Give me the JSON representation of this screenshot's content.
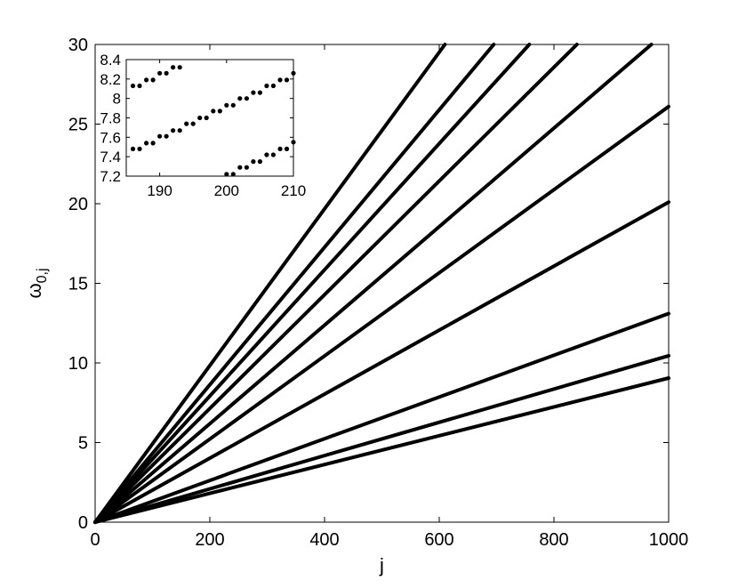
{
  "chart_data": {
    "type": "line",
    "xlabel": "j",
    "ylabel": "ω",
    "ylabel_subscript": "0,j",
    "xlim": [
      0,
      1000
    ],
    "ylim": [
      0,
      30
    ],
    "xticks": [
      "0",
      "200",
      "400",
      "600",
      "800",
      "1000"
    ],
    "yticks": [
      "0",
      "5",
      "10",
      "15",
      "20",
      "25",
      "30"
    ],
    "grid": false,
    "line_color": "#000000",
    "series": [
      {
        "points": [
          [
            0,
            0
          ],
          [
            610,
            30
          ]
        ]
      },
      {
        "points": [
          [
            0,
            0
          ],
          [
            695,
            30
          ]
        ]
      },
      {
        "points": [
          [
            0,
            0
          ],
          [
            757,
            30
          ]
        ]
      },
      {
        "points": [
          [
            0,
            0
          ],
          [
            840,
            30
          ]
        ]
      },
      {
        "points": [
          [
            0,
            0
          ],
          [
            970,
            30
          ]
        ]
      },
      {
        "points": [
          [
            0,
            0
          ],
          [
            1000,
            26.1
          ]
        ]
      },
      {
        "points": [
          [
            0,
            0
          ],
          [
            1000,
            20.1
          ]
        ]
      },
      {
        "points": [
          [
            0,
            0
          ],
          [
            1000,
            13.1
          ]
        ]
      },
      {
        "points": [
          [
            0,
            0
          ],
          [
            1000,
            10.45
          ]
        ]
      },
      {
        "points": [
          [
            0,
            0
          ],
          [
            1000,
            9.05
          ]
        ]
      }
    ],
    "inset": {
      "type": "scatter",
      "xlim": [
        185,
        210
      ],
      "ylim": [
        7.2,
        8.4
      ],
      "xticks": [
        "190",
        "200",
        "210"
      ],
      "yticks": [
        "7.2",
        "7.4",
        "7.6",
        "7.8",
        "8",
        "8.2",
        "8.4"
      ],
      "x": [
        186,
        187,
        188,
        189,
        190,
        191,
        192,
        193,
        194,
        195,
        196,
        197,
        198,
        199,
        200,
        201,
        202,
        203,
        204,
        205,
        206,
        207,
        208,
        209,
        210,
        186,
        187,
        188,
        189,
        190,
        191,
        192,
        193,
        200,
        201,
        202,
        203,
        204,
        205,
        206,
        207,
        208,
        209,
        210
      ],
      "y": [
        7.48,
        7.48,
        7.54,
        7.54,
        7.61,
        7.61,
        7.67,
        7.67,
        7.74,
        7.74,
        7.8,
        7.8,
        7.87,
        7.87,
        7.93,
        7.93,
        8.0,
        8.0,
        8.06,
        8.06,
        8.13,
        8.13,
        8.19,
        8.19,
        8.26,
        8.13,
        8.13,
        8.19,
        8.19,
        8.26,
        8.26,
        8.32,
        8.32,
        7.22,
        7.22,
        7.29,
        7.29,
        7.35,
        7.35,
        7.42,
        7.42,
        7.48,
        7.48,
        7.55
      ]
    }
  }
}
